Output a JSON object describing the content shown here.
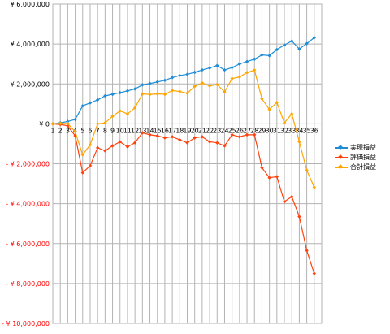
{
  "chart_data": {
    "type": "line",
    "title": "",
    "xlabel": "",
    "ylabel": "",
    "ylim": [
      -10000000,
      6000000
    ],
    "ytick_step": 2000000,
    "ytick_labels": [
      {
        "value": 6000000,
        "label": "¥ 6,000,000"
      },
      {
        "value": 4000000,
        "label": "¥ 4,000,000"
      },
      {
        "value": 2000000,
        "label": "¥ 2,000,000"
      },
      {
        "value": 0,
        "label": "¥ 0"
      },
      {
        "value": -2000000,
        "label": "- ¥ 2,000,000"
      },
      {
        "value": -4000000,
        "label": "- ¥ 4,000,000"
      },
      {
        "value": -6000000,
        "label": "- ¥ 6,000,000"
      },
      {
        "value": -8000000,
        "label": "- ¥ 8,000,000"
      },
      {
        "value": -10000000,
        "label": "- ¥ 10,000,000"
      }
    ],
    "negative_label_color": "#ff0000",
    "grid": true,
    "legend_position": "right",
    "categories": [
      "1",
      "2",
      "3",
      "4",
      "5",
      "6",
      "7",
      "8",
      "9",
      "10",
      "11",
      "12",
      "13",
      "14",
      "15",
      "16",
      "17",
      "18",
      "19",
      "20",
      "21",
      "22",
      "23",
      "24",
      "25",
      "26",
      "27",
      "28",
      "29",
      "30",
      "31",
      "32",
      "33",
      "34",
      "35",
      "36"
    ],
    "series": [
      {
        "name": "実現損益",
        "color": "#1f8dd6",
        "values": [
          0,
          50000,
          120000,
          220000,
          900000,
          1050000,
          1200000,
          1400000,
          1480000,
          1560000,
          1650000,
          1750000,
          1950000,
          2020000,
          2100000,
          2180000,
          2320000,
          2420000,
          2480000,
          2580000,
          2700000,
          2800000,
          2920000,
          2700000,
          2820000,
          3000000,
          3120000,
          3240000,
          3450000,
          3420000,
          3720000,
          3950000,
          4150000,
          3750000,
          4020000,
          4320000
        ]
      },
      {
        "name": "評価損益",
        "color": "#ff420e",
        "values": [
          0,
          -30000,
          -100000,
          -600000,
          -2450000,
          -2100000,
          -1200000,
          -1350000,
          -1100000,
          -900000,
          -1150000,
          -950000,
          -450000,
          -550000,
          -600000,
          -700000,
          -650000,
          -800000,
          -950000,
          -700000,
          -650000,
          -900000,
          -950000,
          -1100000,
          -550000,
          -650000,
          -550000,
          -550000,
          -2200000,
          -2700000,
          -2650000,
          -3900000,
          -3650000,
          -4650000,
          -6350000,
          -7500000
        ]
      },
      {
        "name": "合計損益",
        "color": "#ffa500",
        "values": [
          0,
          20000,
          20000,
          -400000,
          -1550000,
          -1050000,
          0,
          50000,
          380000,
          650000,
          500000,
          800000,
          1500000,
          1470000,
          1500000,
          1480000,
          1670000,
          1620000,
          1530000,
          1880000,
          2050000,
          1900000,
          1970000,
          1600000,
          2270000,
          2350000,
          2570000,
          2690000,
          1250000,
          720000,
          1070000,
          50000,
          500000,
          -900000,
          -2330000,
          -3180000
        ]
      }
    ]
  }
}
